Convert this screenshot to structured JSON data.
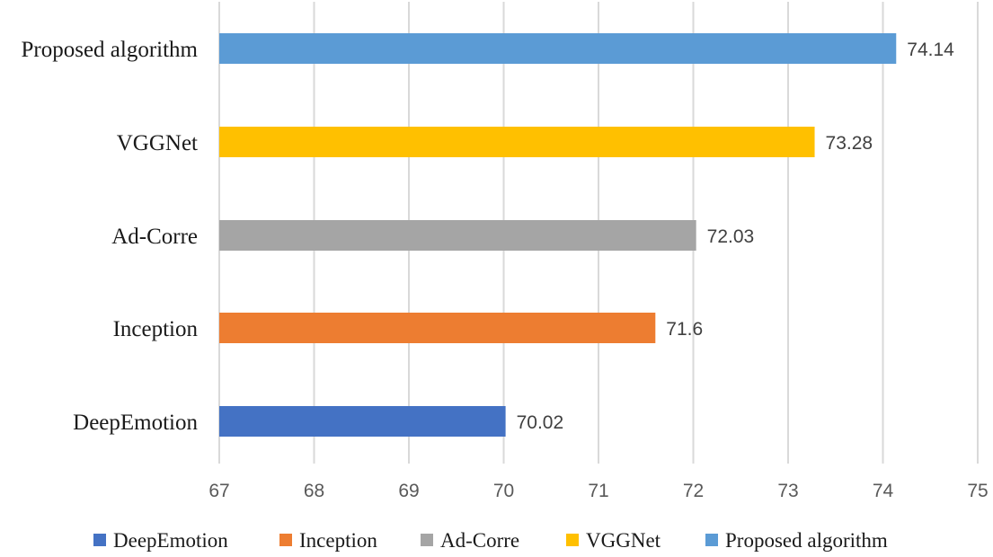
{
  "chart_data": {
    "type": "bar",
    "orientation": "horizontal",
    "title": "",
    "xlabel": "",
    "ylabel": "",
    "xlim": [
      67,
      75
    ],
    "x_ticks": [
      67,
      68,
      69,
      70,
      71,
      72,
      73,
      74,
      75
    ],
    "grid": true,
    "legend_position": "bottom",
    "categories": [
      "DeepEmotion",
      "Inception",
      "Ad-Corre",
      "VGGNet",
      "Proposed algorithm"
    ],
    "values": [
      70.02,
      71.6,
      72.03,
      73.28,
      74.14
    ],
    "value_labels": [
      "70.02",
      "71.6",
      "72.03",
      "73.28",
      "74.14"
    ],
    "colors": [
      "#4472c4",
      "#ed7d31",
      "#a5a5a5",
      "#ffc000",
      "#5b9bd5"
    ]
  }
}
